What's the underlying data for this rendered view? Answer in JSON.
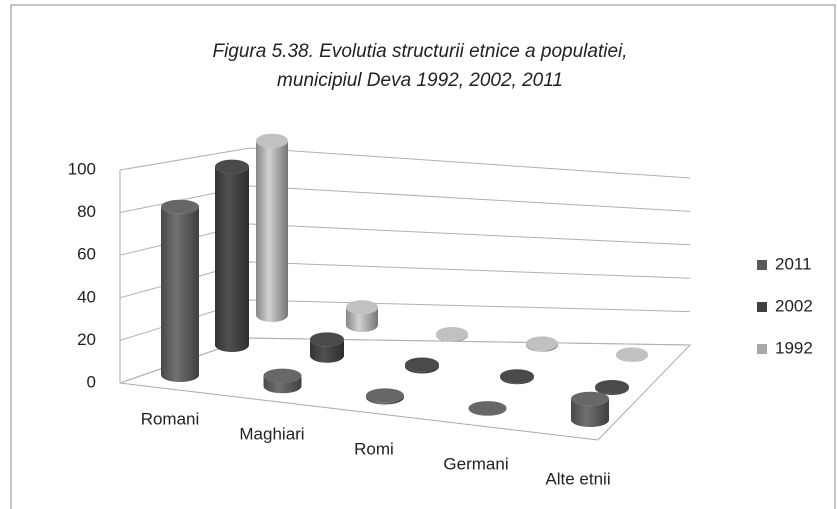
{
  "chart_data": {
    "type": "bar3d",
    "title": [
      "Figura 5.38. Evolutia structurii etnice a populatiei,",
      "municipiul Deva 1992, 2002, 2011"
    ],
    "categories": [
      "Romani",
      "Maghiari",
      "Romi",
      "Germani",
      "Alte etnii"
    ],
    "series": [
      {
        "name": "2011",
        "color": "#5a5a5a",
        "values": [
          79,
          5,
          1,
          0.3,
          10
        ]
      },
      {
        "name": "2002",
        "color": "#404040",
        "values": [
          87,
          8,
          1,
          0.5,
          0.5
        ]
      },
      {
        "name": "1992",
        "color": "#a8a8a8",
        "values": [
          88,
          9,
          0.5,
          0.8,
          0.3
        ]
      }
    ],
    "ylim": [
      0,
      100
    ],
    "yticks": [
      0,
      20,
      40,
      60,
      80,
      100
    ],
    "grid": true,
    "legend": "right"
  }
}
